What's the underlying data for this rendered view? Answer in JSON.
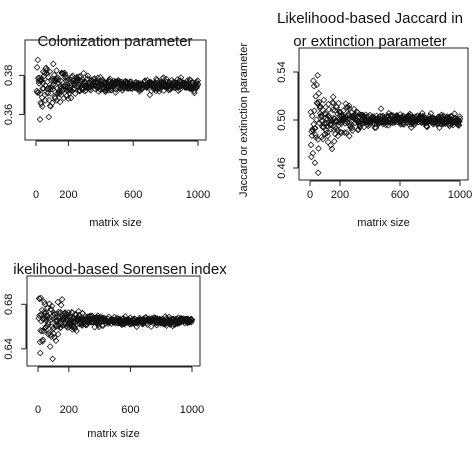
{
  "chart_data": [
    {
      "type": "scatter",
      "title": [
        "Colonization parameter"
      ],
      "xlabel": "matrix size",
      "ylabel": "",
      "xlim": [
        0,
        1000
      ],
      "ylim": [
        0.35,
        0.395
      ],
      "xticks": [
        0,
        200,
        600,
        1000
      ],
      "xtick_labels": [
        "0",
        "200",
        "600",
        "1000"
      ],
      "yticks": [
        0.36,
        0.38
      ],
      "ytick_labels": [
        "0.36",
        "0.38"
      ],
      "center": 0.375,
      "initial_spread": 0.018,
      "final_spread": 0.0025,
      "point_count": 500
    },
    {
      "type": "scatter",
      "title": [
        "Likelihood-based Jaccard in",
        "or extinction parameter"
      ],
      "xlabel": "matrix size",
      "ylabel": "Jaccard or extinction parameter",
      "xlim": [
        0,
        1000
      ],
      "ylim": [
        0.455,
        0.555
      ],
      "xticks": [
        0,
        200,
        600,
        1000
      ],
      "xtick_labels": [
        "0",
        "200",
        "600",
        "1000"
      ],
      "yticks": [
        0.46,
        0.5,
        0.54
      ],
      "ytick_labels": [
        "0.46",
        "0.50",
        "0.54"
      ],
      "center": 0.5,
      "initial_spread": 0.04,
      "final_spread": 0.004,
      "point_count": 500
    },
    {
      "type": "scatter",
      "title": [
        "ikelihood-based Sorensen index"
      ],
      "xlabel": "matrix size",
      "ylabel": "",
      "xlim": [
        0,
        1000
      ],
      "ylim": [
        0.63,
        0.7
      ],
      "xticks": [
        0,
        200,
        600,
        1000
      ],
      "xtick_labels": [
        "0",
        "200",
        "600",
        "1000"
      ],
      "yticks": [
        0.64,
        0.68
      ],
      "ytick_labels": [
        "0.64",
        "0.68"
      ],
      "center": 0.665,
      "initial_spread": 0.028,
      "final_spread": 0.003,
      "point_count": 500
    }
  ]
}
